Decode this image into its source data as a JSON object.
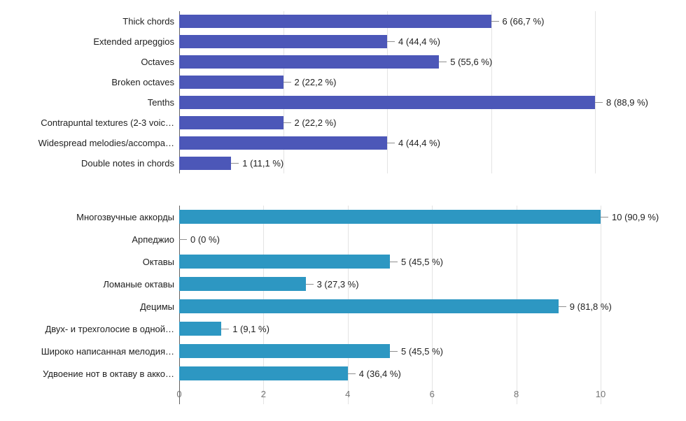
{
  "page": {
    "background": "#ffffff"
  },
  "chart_data": [
    {
      "type": "bar",
      "orientation": "horizontal",
      "title": "",
      "xlabel": "",
      "ylabel": "",
      "bar_color": "#4c57b8",
      "xlim": [
        0,
        8
      ],
      "ticks": [
        0,
        2,
        4,
        6,
        8
      ],
      "show_tick_labels": false,
      "grid": true,
      "categories": [
        "Thick chords",
        "Extended arpeggios",
        "Octaves",
        "Broken octaves",
        "Tenths",
        "Contrapuntal textures (2-3 voic…",
        "Widespread melodies/accompa…",
        "Double notes in chords"
      ],
      "values": [
        6,
        4,
        5,
        2,
        8,
        2,
        4,
        1
      ],
      "value_labels": [
        "6 (66,7 %)",
        "4 (44,4 %)",
        "5 (55,6 %)",
        "2 (22,2 %)",
        "8 (88,9 %)",
        "2 (22,2 %)",
        "4 (44,4 %)",
        "1 (11,1 %)"
      ]
    },
    {
      "type": "bar",
      "orientation": "horizontal",
      "title": "",
      "xlabel": "",
      "ylabel": "",
      "bar_color": "#2d97c2",
      "xlim": [
        0,
        10
      ],
      "ticks": [
        0,
        2,
        4,
        6,
        8,
        10
      ],
      "show_tick_labels": true,
      "grid": true,
      "categories": [
        "Многозвучные аккорды",
        "Арпеджио",
        "Октавы",
        "Ломаные октавы",
        "Децимы",
        "Двух- и трехголосие в одной…",
        "Широко написанная мелодия…",
        "Удвоение нот в октаву в акко…"
      ],
      "values": [
        10,
        0,
        5,
        3,
        9,
        1,
        5,
        4
      ],
      "value_labels": [
        "10 (90,9 %)",
        "0 (0 %)",
        "5 (45,5 %)",
        "3 (27,3 %)",
        "9 (81,8 %)",
        "1 (9,1 %)",
        "5 (45,5 %)",
        "4 (36,4 %)"
      ]
    }
  ]
}
